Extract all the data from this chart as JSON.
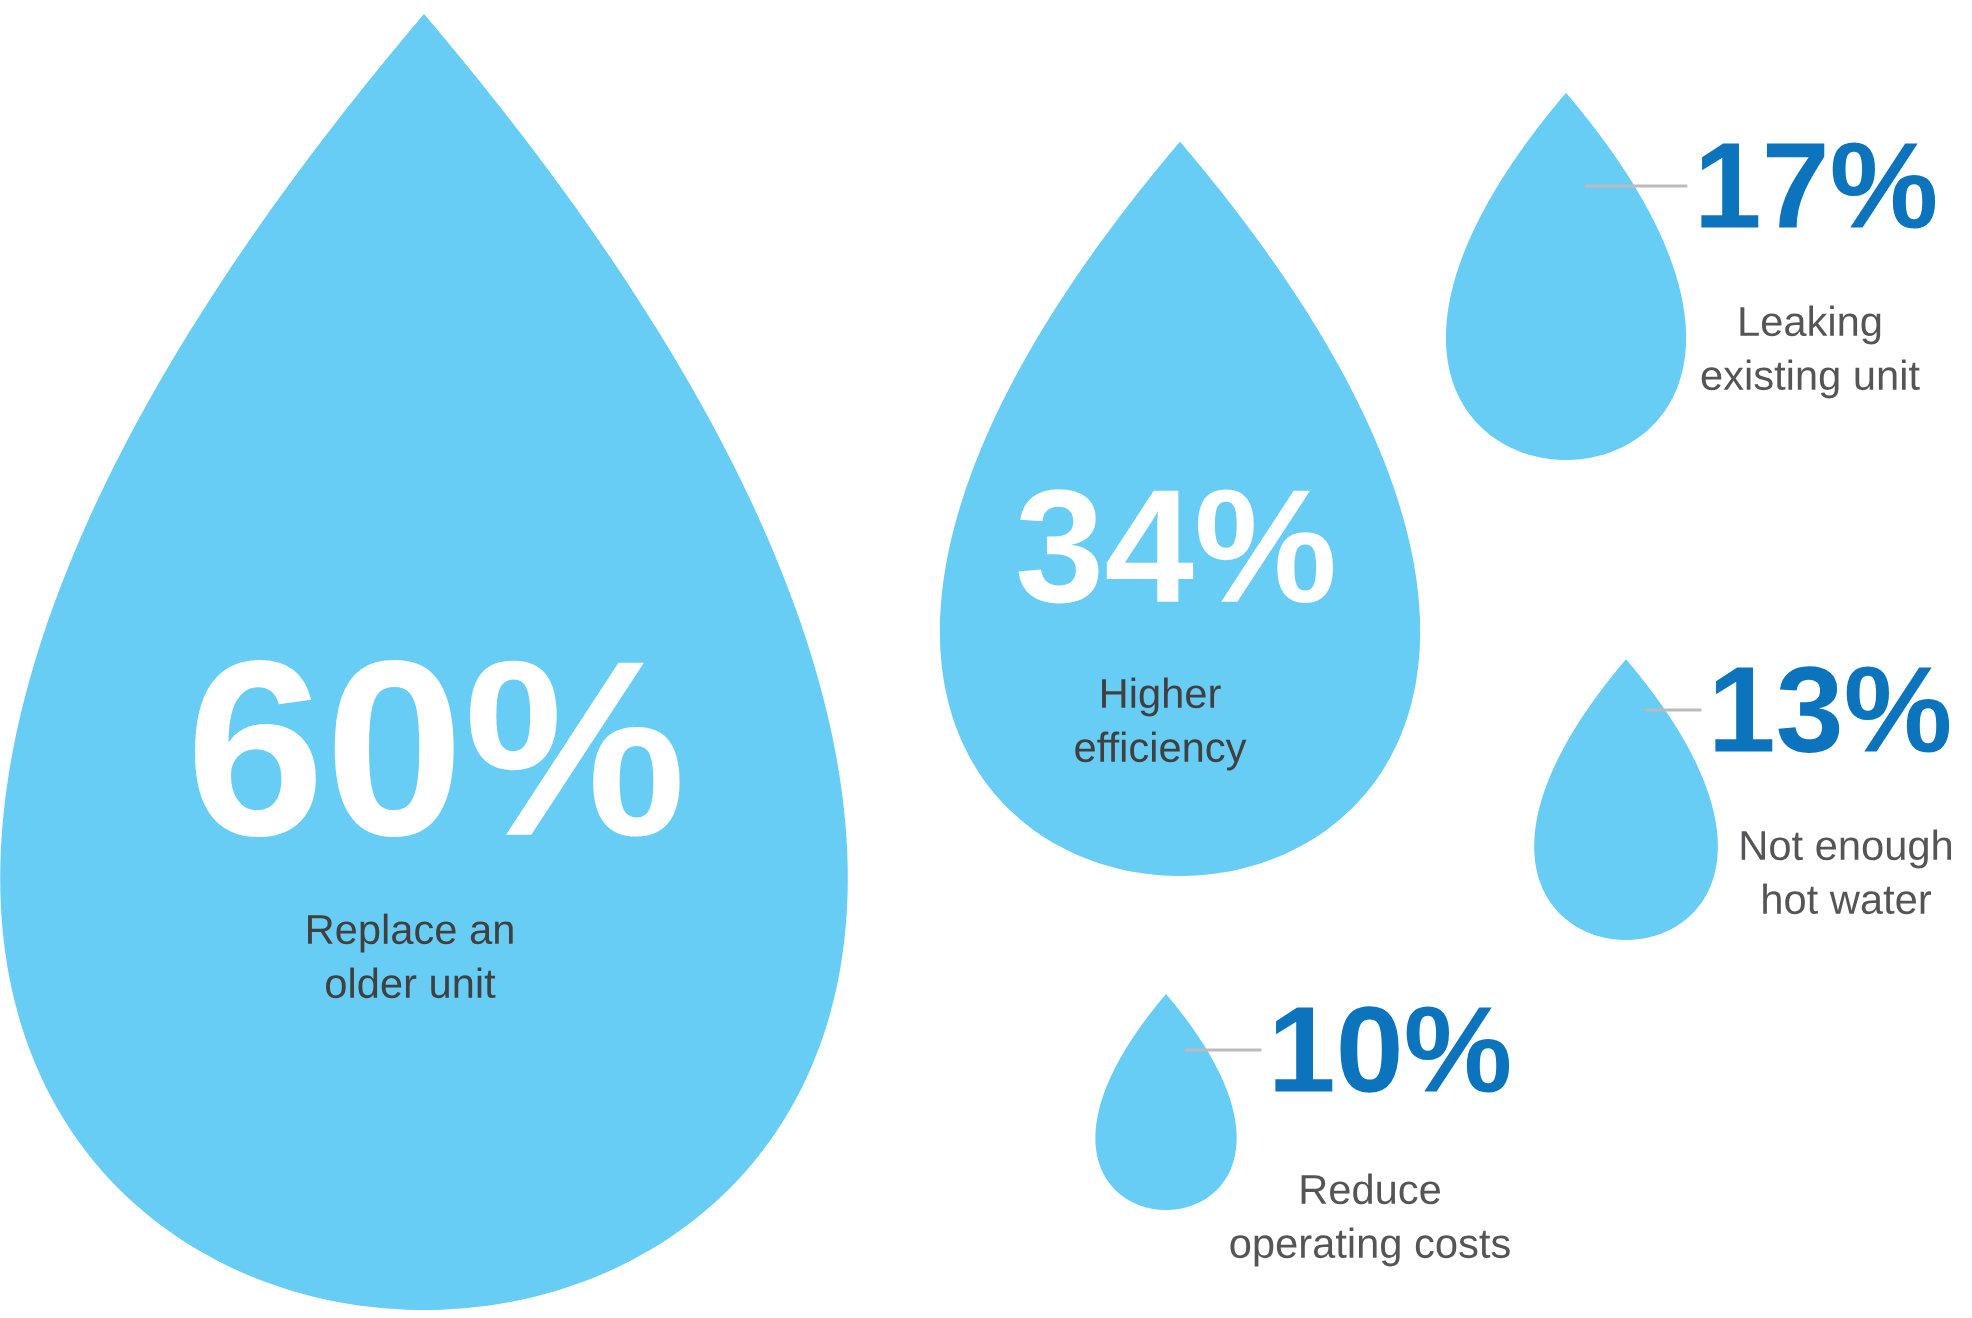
{
  "chart_data": {
    "type": "other",
    "categories": [
      "Replace an\nolder unit",
      "Higher\nefficiency",
      "Leaking\nexisting unit",
      "Not enough\nhot water",
      "Reduce\noperating costs"
    ],
    "values": [
      60,
      34,
      17,
      13,
      10
    ],
    "value_labels": [
      "60%",
      "34%",
      "17%",
      "13%",
      "10%"
    ],
    "colors": [
      "#67cdf5",
      "#67cdf5",
      "#67cdf5",
      "#67cdf5",
      "#67cdf5"
    ]
  }
}
